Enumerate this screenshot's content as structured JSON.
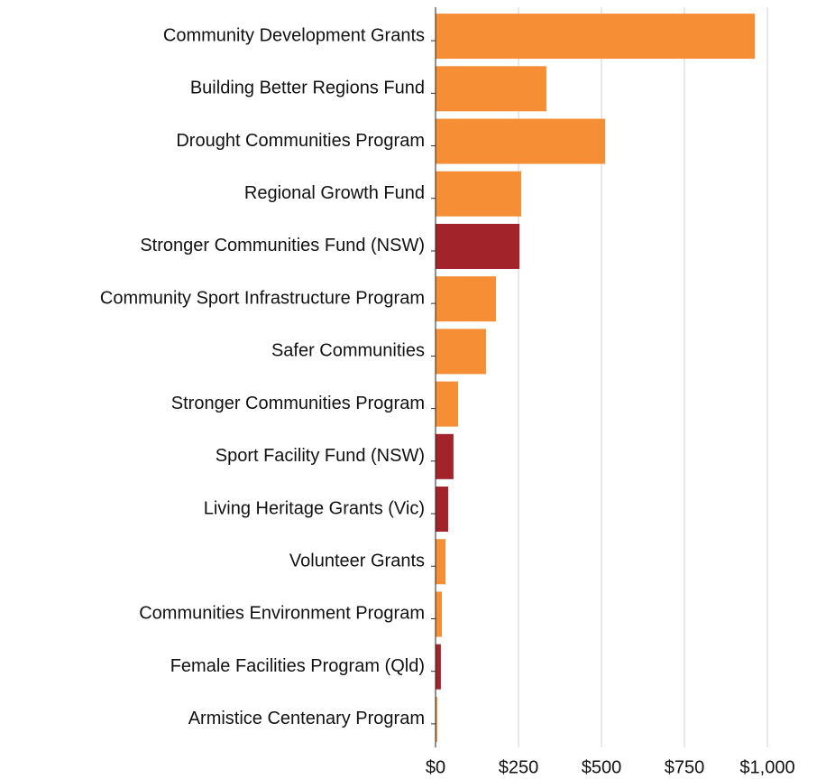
{
  "chart_data": {
    "type": "barh",
    "categories": [
      "Community Development Grants",
      "Building Better Regions Fund",
      "Drought Communities Program",
      "Regional Growth Fund",
      "Stronger Communities Fund (NSW)",
      "Community Sport Infrastructure Program",
      "Safer Communities",
      "Stronger Communities Program",
      "Sport Facility Fund (NSW)",
      "Living Heritage Grants (Vic)",
      "Volunteer Grants",
      "Communities Environment Program",
      "Female Facilities Program (Qld)",
      "Armistice Centenary Program"
    ],
    "values": [
      962,
      334,
      511,
      258,
      253,
      182,
      152,
      68,
      54,
      38,
      30,
      19,
      16,
      5
    ],
    "colors": [
      "#f68e36",
      "#f68e36",
      "#f68e36",
      "#f68e36",
      "#a3232a",
      "#f68e36",
      "#f68e36",
      "#f68e36",
      "#a3232a",
      "#a3232a",
      "#f68e36",
      "#f68e36",
      "#a3232a",
      "#f68e36"
    ],
    "xlim": [
      0,
      1000
    ],
    "xticks": [
      {
        "value": 0,
        "label": "$0"
      },
      {
        "value": 250,
        "label": "$250"
      },
      {
        "value": 500,
        "label": "$500"
      },
      {
        "value": 750,
        "label": "$750"
      },
      {
        "value": 1000,
        "label": "$1,000"
      }
    ],
    "grid": true
  }
}
